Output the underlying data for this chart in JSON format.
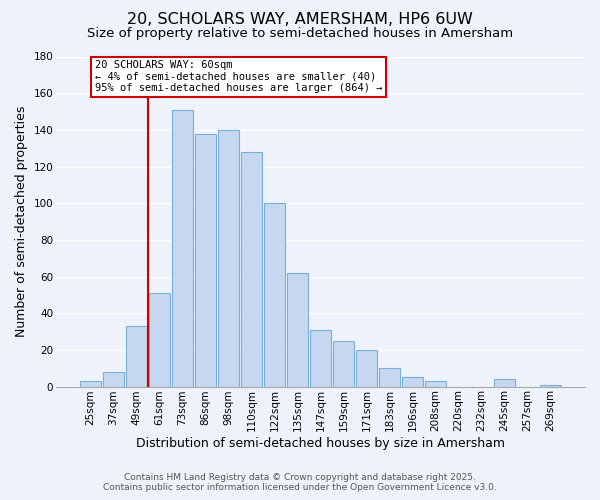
{
  "title": "20, SCHOLARS WAY, AMERSHAM, HP6 6UW",
  "subtitle": "Size of property relative to semi-detached houses in Amersham",
  "xlabel": "Distribution of semi-detached houses by size in Amersham",
  "ylabel": "Number of semi-detached properties",
  "bar_labels": [
    "25sqm",
    "37sqm",
    "49sqm",
    "61sqm",
    "73sqm",
    "86sqm",
    "98sqm",
    "110sqm",
    "122sqm",
    "135sqm",
    "147sqm",
    "159sqm",
    "171sqm",
    "183sqm",
    "196sqm",
    "208sqm",
    "220sqm",
    "232sqm",
    "245sqm",
    "257sqm",
    "269sqm"
  ],
  "bar_values": [
    3,
    8,
    33,
    51,
    151,
    138,
    140,
    128,
    100,
    62,
    31,
    25,
    20,
    10,
    5,
    3,
    0,
    0,
    4,
    0,
    1
  ],
  "bar_color": "#c5d8f0",
  "bar_edge_color": "#7ab0d8",
  "ylim": [
    0,
    180
  ],
  "yticks": [
    0,
    20,
    40,
    60,
    80,
    100,
    120,
    140,
    160,
    180
  ],
  "property_line_x_label": "61sqm",
  "property_line_color": "#cc0000",
  "annotation_title": "20 SCHOLARS WAY: 60sqm",
  "annotation_line1": "← 4% of semi-detached houses are smaller (40)",
  "annotation_line2": "95% of semi-detached houses are larger (864) →",
  "annotation_box_color": "#cc0000",
  "footer1": "Contains HM Land Registry data © Crown copyright and database right 2025.",
  "footer2": "Contains public sector information licensed under the Open Government Licence v3.0.",
  "background_color": "#eef2fb",
  "grid_color": "#ffffff",
  "title_fontsize": 11.5,
  "subtitle_fontsize": 9.5,
  "axis_label_fontsize": 9,
  "tick_fontsize": 7.5,
  "footer_fontsize": 6.5
}
